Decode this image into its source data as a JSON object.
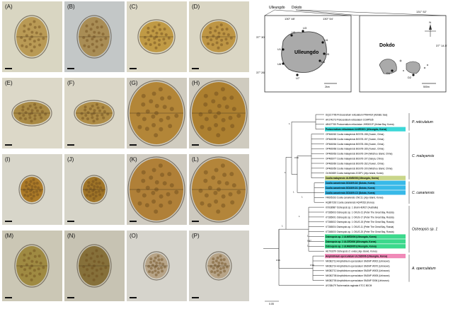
{
  "panels": [
    {
      "label": "(A)",
      "bg": "#d9d6c2",
      "cell": "#b99a55",
      "shape": "oval"
    },
    {
      "label": "(B)",
      "bg": "#c3c7c7",
      "cell": "#a98d55",
      "shape": "oval"
    },
    {
      "label": "(C)",
      "bg": "#dcd8c6",
      "cell": "#c09a45",
      "shape": "round"
    },
    {
      "label": "(D)",
      "bg": "#dad6c4",
      "cell": "#be9645",
      "shape": "round"
    },
    {
      "label": "(E)",
      "bg": "#dcd8c8",
      "cell": "#a98a45",
      "shape": "flat"
    },
    {
      "label": "(F)",
      "bg": "#dad6c6",
      "cell": "#ae8c45",
      "shape": "flat"
    },
    {
      "label": "(G)",
      "bg": "#d0ccc0",
      "cell": "#b38638",
      "shape": "big"
    },
    {
      "label": "(H)",
      "bg": "#cfcbbf",
      "cell": "#ad8030",
      "shape": "big"
    },
    {
      "label": "(I)",
      "bg": "#d8d6ca",
      "cell": "#ab7a28",
      "shape": "small"
    },
    {
      "label": "(J)",
      "bg": "#d6d4c8",
      "cell": "#a07528",
      "shape": "small"
    },
    {
      "label": "(K)",
      "bg": "#cfcbc1",
      "cell": "#b08038",
      "shape": "big"
    },
    {
      "label": "(L)",
      "bg": "#cdc9bf",
      "cell": "#b3853a",
      "shape": "big"
    },
    {
      "label": "(M)",
      "bg": "#cbc7b5",
      "cell": "#9f8a42",
      "shape": "oval"
    },
    {
      "label": "(N)",
      "bg": "#c7c3b3",
      "cell": "#86703a",
      "shape": "oval"
    },
    {
      "label": "(O)",
      "bg": "#d6d4cc",
      "cell": "#b7a488",
      "shape": "small"
    },
    {
      "label": "(P)",
      "bg": "#d4d2ca",
      "cell": "#b7a488",
      "shape": "small"
    }
  ],
  "maps": {
    "ulleungdo": {
      "name": "Ulleungdo",
      "header_name": "Ulleungdo",
      "lon1": "130° 48'",
      "lon2": "130° 54'",
      "lat1": "37° 30'",
      "lat2": "37° 26'",
      "sites": [
        "U1",
        "U2",
        "U3",
        "U4",
        "U5",
        "U6",
        "U7",
        "U8"
      ],
      "scale": "2km"
    },
    "dokdo": {
      "name": "Dokdo",
      "header_name": "Dokdo",
      "lon": "131° 52'",
      "lat": "37° 14.5'",
      "sites": [
        "D1",
        "D2"
      ],
      "north": "N",
      "scale": "500m"
    }
  },
  "tree": {
    "clades": [
      {
        "name": "P. reticulatum",
        "color": "#ffffff"
      },
      {
        "name": "C. malayensis",
        "color": "#ffffff"
      },
      {
        "name": "C. canariensis",
        "color": "#ffffff"
      },
      {
        "name": "Ostreopsis sp. 1",
        "color": "#ffffff"
      },
      {
        "name": "A. operculatum",
        "color": "#ffffff"
      }
    ],
    "highlight_colors": {
      "cyan": "#3cd7d7",
      "olive": "#c9d68a",
      "blue": "#38b9e8",
      "green": "#3bd98c",
      "pink": "#f08ab8"
    },
    "node_values": [
      "1",
      "0.99",
      "1",
      "1",
      "1",
      "0.97",
      "1",
      "0.96",
      "1",
      "1",
      "1",
      "0.99"
    ],
    "leaves": [
      {
        "label": "DQ217796 Protoceratium reticulatum PRA4414 (Adriatic Sea)",
        "hl": ""
      },
      {
        "label": "AF274273 Protoceratium reticulatum CCMP535",
        "hl": ""
      },
      {
        "label": "AB427765 Protoceratium reticulatum JH90001P (Jinhae Bay, Korea)",
        "hl": ""
      },
      {
        "label": "Protoceratium reticulatum ULKED001 (Ulleungdo, Korea)",
        "hl": "cyan"
      },
      {
        "label": "OP466062 Coolia malayensis BGS78-158 (Xuwen, China)",
        "hl": ""
      },
      {
        "label": "OP466058 Coolia malayensis BGS78-157 (Xuwen, China)",
        "hl": ""
      },
      {
        "label": "OP466064 Coolia malayensis BGS78-156 (Xuwen, China)",
        "hl": ""
      },
      {
        "label": "OP466066 Coolia malayensis BGS78-165 (Xuwen, China)",
        "hl": ""
      },
      {
        "label": "OP466063 Coolia malayensis BGS76-104 (Weizhou Island, China)",
        "hl": ""
      },
      {
        "label": "OP466077 Coolia malayensis BGS76-107 (Sanya, China)",
        "hl": ""
      },
      {
        "label": "OP466060 Coolia malayensis BGS76-162 (Xuwen, China)",
        "hl": ""
      },
      {
        "label": "OP466050 Coolia malayensis BGS76-100 (Weizhou Island, China)",
        "hl": ""
      },
      {
        "label": "OL960659 Coolia malayensis 2GDP1 (Jeju Island, Korea)",
        "hl": ""
      },
      {
        "label": "Coolia malayensis ULKMD008 (Ulleungdo, Korea)",
        "hl": "olive"
      },
      {
        "label": "Coolia canariensis DD2409-D2 (Dokdo, Korea)",
        "hl": "blue"
      },
      {
        "label": "Coolia canariensis DD2409-D1 (Dokdo, Korea)",
        "hl": "blue"
      },
      {
        "label": "Coolia canariensis DD2409-C3 (Dokdo, Korea)",
        "hl": "blue"
      },
      {
        "label": "FR695193 Coolia canariensis CNC11 (Jeju Island, Korea)",
        "hl": ""
      },
      {
        "label": "HQ897292 Coolia canariensis HQ4P262 (Korea)",
        "hl": ""
      },
      {
        "label": "KX938987 Ostreopsis sp. 1 strain HER27 (Australia)",
        "hl": ""
      },
      {
        "label": "KT365003 Ostreopsis sp. 1 OKUS-21 (Peter The Great Bay, Russia)",
        "hl": ""
      },
      {
        "label": "KT365001 Ostreopsis sp. 1 OKUS-17 (Peter The Great Bay, Russia)",
        "hl": ""
      },
      {
        "label": "KT365002 Ostreopsis sp. 1 OKUS-15 (Peter The Great Bay, Russia)",
        "hl": ""
      },
      {
        "label": "KT365004 Ostreopsis sp. 1 OKUS-11 (Peter The Great Bay, Russia)",
        "hl": ""
      },
      {
        "label": "KT365000 Ostreopsis sp. 1 OKUS-20 (Peter The Great Bay, Russia)",
        "hl": ""
      },
      {
        "label": "Ostreopsis sp. 1 ULMED006 (Ulleungdo, Korea)",
        "hl": "green"
      },
      {
        "label": "Ostreopsis sp. 1 ULCED006 (Ulleungdo, Korea)",
        "hl": "green"
      },
      {
        "label": "Ostreopsis sp. 1 ULMED005 (Ulleungdo, Korea)",
        "hl": "green"
      },
      {
        "label": "HE793379 Ostreopsis cf. ovata (Jeju Island, Korea)",
        "hl": ""
      },
      {
        "label": "Amphidinium operculatum ULCED006 (Ulleungdo, Korea)",
        "hl": "pink"
      },
      {
        "label": "MK082713 Amphidinium operculatum SMJMP W002 (Unknown)",
        "hl": ""
      },
      {
        "label": "MK082714 Amphidinium operculatum SMJMP W070 (Unknown)",
        "hl": ""
      },
      {
        "label": "MK082712 Amphidinium operculatum SMJMP W003 (Unknown)",
        "hl": ""
      },
      {
        "label": "MK082708 Amphidinium operculatum SMJMP W005 (Unknown)",
        "hl": ""
      },
      {
        "label": "MK082705 Amphidinium operculatum SMJMP S006 (Unknown)",
        "hl": ""
      },
      {
        "label": "AY238479 Tschermakia vaginata KTCC 80CM",
        "hl": ""
      }
    ],
    "scale_label": "0.05"
  }
}
